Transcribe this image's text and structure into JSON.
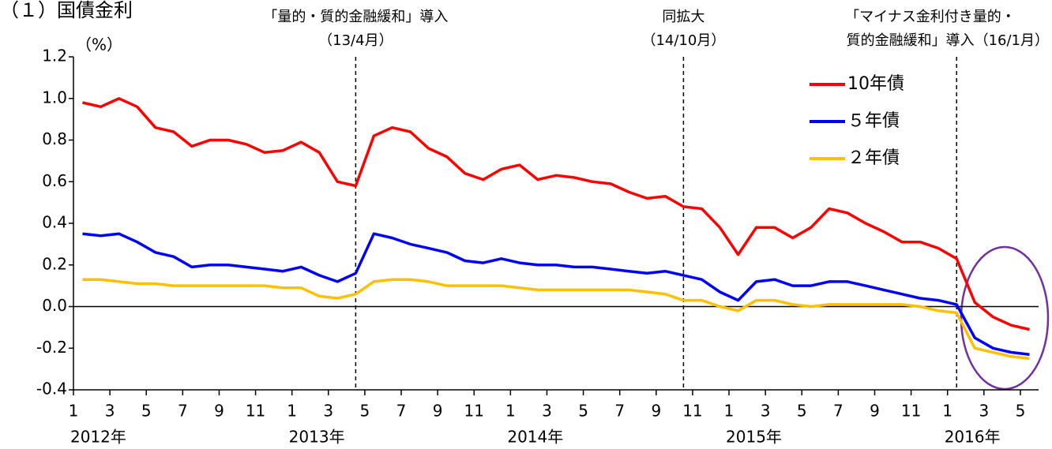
{
  "chart_data": {
    "type": "line",
    "title": "（１）国債金利",
    "y_unit": "（%）",
    "x": [
      "2012-01",
      "2012-02",
      "2012-03",
      "2012-04",
      "2012-05",
      "2012-06",
      "2012-07",
      "2012-08",
      "2012-09",
      "2012-10",
      "2012-11",
      "2012-12",
      "2013-01",
      "2013-02",
      "2013-03",
      "2013-04",
      "2013-05",
      "2013-06",
      "2013-07",
      "2013-08",
      "2013-09",
      "2013-10",
      "2013-11",
      "2013-12",
      "2014-01",
      "2014-02",
      "2014-03",
      "2014-04",
      "2014-05",
      "2014-06",
      "2014-07",
      "2014-08",
      "2014-09",
      "2014-10",
      "2014-11",
      "2014-12",
      "2015-01",
      "2015-02",
      "2015-03",
      "2015-04",
      "2015-05",
      "2015-06",
      "2015-07",
      "2015-08",
      "2015-09",
      "2015-10",
      "2015-11",
      "2015-12",
      "2016-01",
      "2016-02",
      "2016-03",
      "2016-04",
      "2016-05"
    ],
    "series": [
      {
        "name": "10年債",
        "color": "#ff0000",
        "values": [
          0.98,
          0.96,
          1.0,
          0.96,
          0.86,
          0.84,
          0.77,
          0.8,
          0.8,
          0.78,
          0.74,
          0.75,
          0.79,
          0.74,
          0.6,
          0.58,
          0.82,
          0.86,
          0.84,
          0.76,
          0.72,
          0.64,
          0.61,
          0.66,
          0.68,
          0.61,
          0.63,
          0.62,
          0.6,
          0.59,
          0.55,
          0.52,
          0.53,
          0.48,
          0.47,
          0.38,
          0.25,
          0.38,
          0.38,
          0.33,
          0.38,
          0.47,
          0.45,
          0.4,
          0.36,
          0.31,
          0.31,
          0.28,
          0.23,
          0.02,
          -0.05,
          -0.09,
          -0.11
        ]
      },
      {
        "name": "５年債",
        "color": "#0000ff",
        "values": [
          0.35,
          0.34,
          0.35,
          0.31,
          0.26,
          0.24,
          0.19,
          0.2,
          0.2,
          0.19,
          0.18,
          0.17,
          0.19,
          0.15,
          0.12,
          0.16,
          0.35,
          0.33,
          0.3,
          0.28,
          0.26,
          0.22,
          0.21,
          0.23,
          0.21,
          0.2,
          0.2,
          0.19,
          0.19,
          0.18,
          0.17,
          0.16,
          0.17,
          0.15,
          0.13,
          0.07,
          0.03,
          0.12,
          0.13,
          0.1,
          0.1,
          0.12,
          0.12,
          0.1,
          0.08,
          0.06,
          0.04,
          0.03,
          0.01,
          -0.15,
          -0.2,
          -0.22,
          -0.23
        ]
      },
      {
        "name": "２年債",
        "color": "#ffc000",
        "values": [
          0.13,
          0.13,
          0.12,
          0.11,
          0.11,
          0.1,
          0.1,
          0.1,
          0.1,
          0.1,
          0.1,
          0.09,
          0.09,
          0.05,
          0.04,
          0.06,
          0.12,
          0.13,
          0.13,
          0.12,
          0.1,
          0.1,
          0.1,
          0.1,
          0.09,
          0.08,
          0.08,
          0.08,
          0.08,
          0.08,
          0.08,
          0.07,
          0.06,
          0.03,
          0.03,
          0.0,
          -0.02,
          0.03,
          0.03,
          0.01,
          0.0,
          0.01,
          0.01,
          0.01,
          0.01,
          0.01,
          0.0,
          -0.02,
          -0.03,
          -0.2,
          -0.22,
          -0.24,
          -0.25
        ]
      }
    ],
    "xlim": [
      "2012-01",
      "2016-06"
    ],
    "xticks": [
      {
        "value": "2012-01",
        "label": "1"
      },
      {
        "value": "2012-03",
        "label": "3"
      },
      {
        "value": "2012-05",
        "label": "5"
      },
      {
        "value": "2012-07",
        "label": "7"
      },
      {
        "value": "2012-09",
        "label": "9"
      },
      {
        "value": "2012-11",
        "label": "11"
      },
      {
        "value": "2013-01",
        "label": "1"
      },
      {
        "value": "2013-03",
        "label": "3"
      },
      {
        "value": "2013-05",
        "label": "5"
      },
      {
        "value": "2013-07",
        "label": "7"
      },
      {
        "value": "2013-09",
        "label": "9"
      },
      {
        "value": "2013-11",
        "label": "11"
      },
      {
        "value": "2014-01",
        "label": "1"
      },
      {
        "value": "2014-03",
        "label": "3"
      },
      {
        "value": "2014-05",
        "label": "5"
      },
      {
        "value": "2014-07",
        "label": "7"
      },
      {
        "value": "2014-09",
        "label": "9"
      },
      {
        "value": "2014-11",
        "label": "11"
      },
      {
        "value": "2015-01",
        "label": "1"
      },
      {
        "value": "2015-03",
        "label": "3"
      },
      {
        "value": "2015-05",
        "label": "5"
      },
      {
        "value": "2015-07",
        "label": "7"
      },
      {
        "value": "2015-09",
        "label": "9"
      },
      {
        "value": "2015-11",
        "label": "11"
      },
      {
        "value": "2016-01",
        "label": "1"
      },
      {
        "value": "2016-03",
        "label": "3"
      },
      {
        "value": "2016-05",
        "label": "5"
      }
    ],
    "year_labels": [
      {
        "value": "2012-01",
        "label": "2012年"
      },
      {
        "value": "2013-01",
        "label": "2013年"
      },
      {
        "value": "2014-01",
        "label": "2014年"
      },
      {
        "value": "2015-01",
        "label": "2015年"
      },
      {
        "value": "2016-01",
        "label": "2016年"
      }
    ],
    "ylim": [
      -0.4,
      1.2
    ],
    "yticks": [
      -0.4,
      -0.2,
      {
        "value": 0,
        "label": "0.0"
      },
      0.2,
      0.4,
      0.6,
      0.8,
      {
        "value": 1,
        "label": "1.0"
      },
      1.2
    ],
    "events": [
      {
        "x": "2013-04",
        "lines": [
          "「量的・質的金融緩和」導入",
          "（13/4月）"
        ]
      },
      {
        "x": "2014-10",
        "lines": [
          "同拡大",
          "（14/10月）"
        ]
      },
      {
        "x": "2016-01",
        "lines": [
          "「マイナス金利付き量的・",
          "質的金融緩和」導入（16/1月）"
        ]
      }
    ]
  }
}
